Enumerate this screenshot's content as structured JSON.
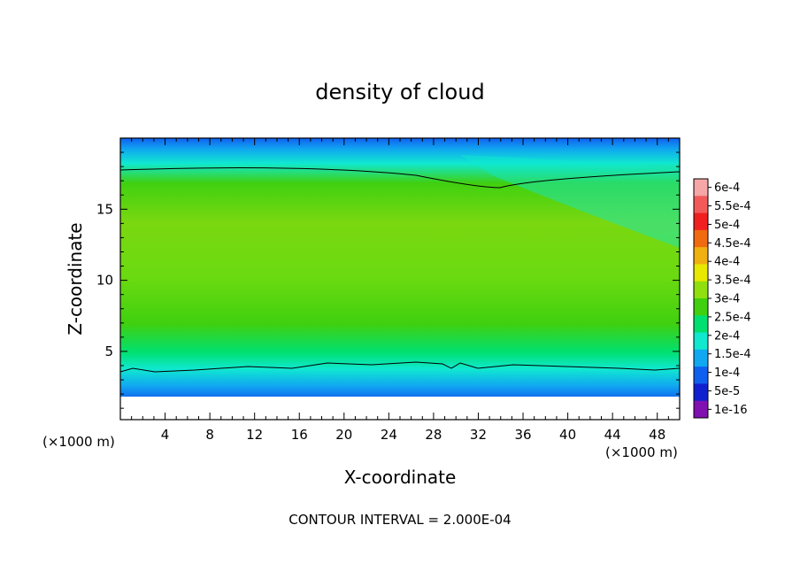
{
  "chart_data": {
    "type": "heatmap",
    "title": "density of cloud",
    "xlabel": "X-coordinate",
    "ylabel": "Z-coordinate",
    "x_unit_left": "(×1000 m)",
    "x_unit_right": "(×1000 m)",
    "xlim": [
      0,
      50
    ],
    "ylim": [
      0.2,
      20
    ],
    "x_ticks": [
      4,
      8,
      12,
      16,
      20,
      24,
      28,
      32,
      36,
      40,
      44,
      48
    ],
    "y_ticks": [
      5,
      10,
      15
    ],
    "colorbar": {
      "labels": [
        "6e-4",
        "5.5e-4",
        "5e-4",
        "4.5e-4",
        "4e-4",
        "3.5e-4",
        "3e-4",
        "2.5e-4",
        "2e-4",
        "1.5e-4",
        "1e-4",
        "5e-5",
        "1e-16"
      ],
      "colors": [
        "#f6a6a6",
        "#f25a5a",
        "#f02020",
        "#f06a10",
        "#f0b010",
        "#e8e800",
        "#90e010",
        "#40d010",
        "#00e070",
        "#10e8d0",
        "#10a8f0",
        "#1060f0",
        "#1020d0",
        "#8010b0"
      ]
    },
    "contour_interval_note": "CONTOUR INTERVAL = 2.000E-04"
  }
}
